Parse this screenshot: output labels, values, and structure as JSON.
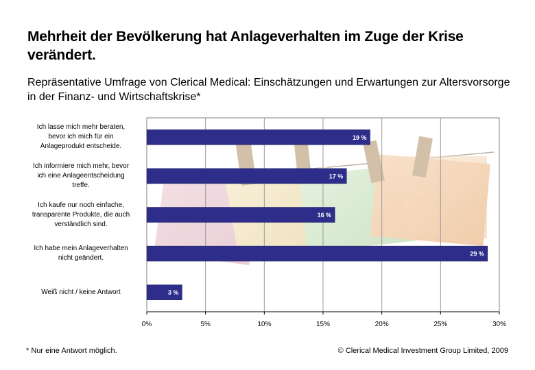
{
  "title": "Mehrheit der Bevölkerung hat Anlageverhalten im Zuge der Krise verändert.",
  "subtitle": "Repräsentative Umfrage von Clerical Medical: Einschätzungen und Erwartungen zur Altersvorsorge in der Finanz- und Wirtschaftskrise*",
  "footnote": "* Nur eine Antwort möglich.",
  "copyright": "© Clerical Medical Investment Group Limited, 2009",
  "colors": {
    "bar": "#2E2E8A",
    "axis": "#000000"
  },
  "chart_data": {
    "type": "bar",
    "orientation": "horizontal",
    "categories": [
      "Ich lasse mich mehr beraten, bevor ich mich für ein Anlageprodukt entscheide.",
      "Ich informiere mich mehr, bevor ich eine Anlageentscheidung treffe.",
      "Ich kaufe nur noch einfache, transparente Produkte, die auch verständlich sind.",
      "Ich habe mein Anlageverhalten nicht geändert.",
      "Weiß nicht / keine Antwort"
    ],
    "category_lines": [
      [
        "Ich lasse mich mehr beraten,",
        "bevor ich mich für ein",
        "Anlageprodukt entscheide."
      ],
      [
        "Ich informiere mich mehr, bevor",
        "ich eine Anlageentscheidung",
        "treffe."
      ],
      [
        "Ich kaufe nur noch einfache,",
        "transparente Produkte, die auch",
        "verständlich sind."
      ],
      [
        "Ich habe mein Anlageverhalten",
        "nicht geändert."
      ],
      [
        "Weiß nicht / keine Antwort"
      ]
    ],
    "values": [
      19,
      17,
      16,
      29,
      3
    ],
    "value_labels": [
      "19 %",
      "17 %",
      "16 %",
      "29 %",
      "3 %"
    ],
    "xlim": [
      0,
      30
    ],
    "xticks": [
      0,
      5,
      10,
      15,
      20,
      25,
      30
    ],
    "xtick_labels": [
      "0%",
      "5%",
      "10%",
      "15%",
      "20%",
      "25%",
      "30%"
    ],
    "grid": true,
    "legend": "none"
  }
}
